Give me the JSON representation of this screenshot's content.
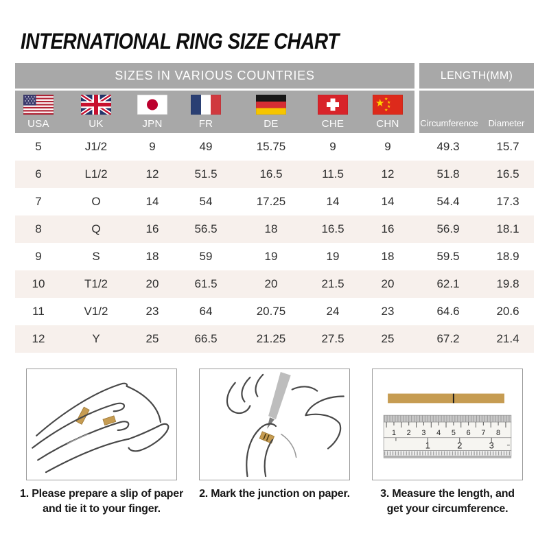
{
  "title": "INTERNATIONAL RING SIZE CHART",
  "table": {
    "section_headers": {
      "sizes": "SIZES IN VARIOUS COUNTRIES",
      "length": "LENGTH(MM)"
    },
    "country_columns": [
      {
        "code": "USA",
        "flag": "usa"
      },
      {
        "code": "UK",
        "flag": "united-kingdom"
      },
      {
        "code": "JPN",
        "flag": "japan"
      },
      {
        "code": "FR",
        "flag": "france"
      },
      {
        "code": "DE",
        "flag": "germany"
      },
      {
        "code": "CHE",
        "flag": "switzerland"
      },
      {
        "code": "CHN",
        "flag": "china"
      }
    ],
    "length_columns": [
      "Circumference",
      "Diameter"
    ],
    "rows": [
      [
        "5",
        "J1/2",
        "9",
        "49",
        "15.75",
        "9",
        "9",
        "49.3",
        "15.7"
      ],
      [
        "6",
        "L1/2",
        "12",
        "51.5",
        "16.5",
        "11.5",
        "12",
        "51.8",
        "16.5"
      ],
      [
        "7",
        "O",
        "14",
        "54",
        "17.25",
        "14",
        "14",
        "54.4",
        "17.3"
      ],
      [
        "8",
        "Q",
        "16",
        "56.5",
        "18",
        "16.5",
        "16",
        "56.9",
        "18.1"
      ],
      [
        "9",
        "S",
        "18",
        "59",
        "19",
        "19",
        "18",
        "59.5",
        "18.9"
      ],
      [
        "10",
        "T1/2",
        "20",
        "61.5",
        "20",
        "21.5",
        "20",
        "62.1",
        "19.8"
      ],
      [
        "11",
        "V1/2",
        "23",
        "64",
        "20.75",
        "24",
        "23",
        "64.6",
        "20.6"
      ],
      [
        "12",
        "Y",
        "25",
        "66.5",
        "21.25",
        "27.5",
        "25",
        "67.2",
        "21.4"
      ]
    ]
  },
  "instructions": [
    {
      "lines": [
        "1. Please prepare a slip of paper",
        "and tie it to your finger."
      ],
      "illustration": "hand-with-paper-strip"
    },
    {
      "lines": [
        "2. Mark the junction on paper.",
        ""
      ],
      "illustration": "pen-marking-junction"
    },
    {
      "lines": [
        "3. Measure the length, and",
        "get your circumference."
      ],
      "illustration": "ruler-measuring-strip"
    }
  ],
  "ruler": {
    "cm_marks": [
      "1",
      "2",
      "3",
      "4",
      "5",
      "6",
      "7",
      "8"
    ],
    "inch_marks": [
      "1",
      "2",
      "3"
    ]
  },
  "colors": {
    "header_gray": "#a8a8a8",
    "row_alt": "#f7f0ec",
    "paper_tan": "#c69c52",
    "text_dark": "#2e2e2e"
  }
}
